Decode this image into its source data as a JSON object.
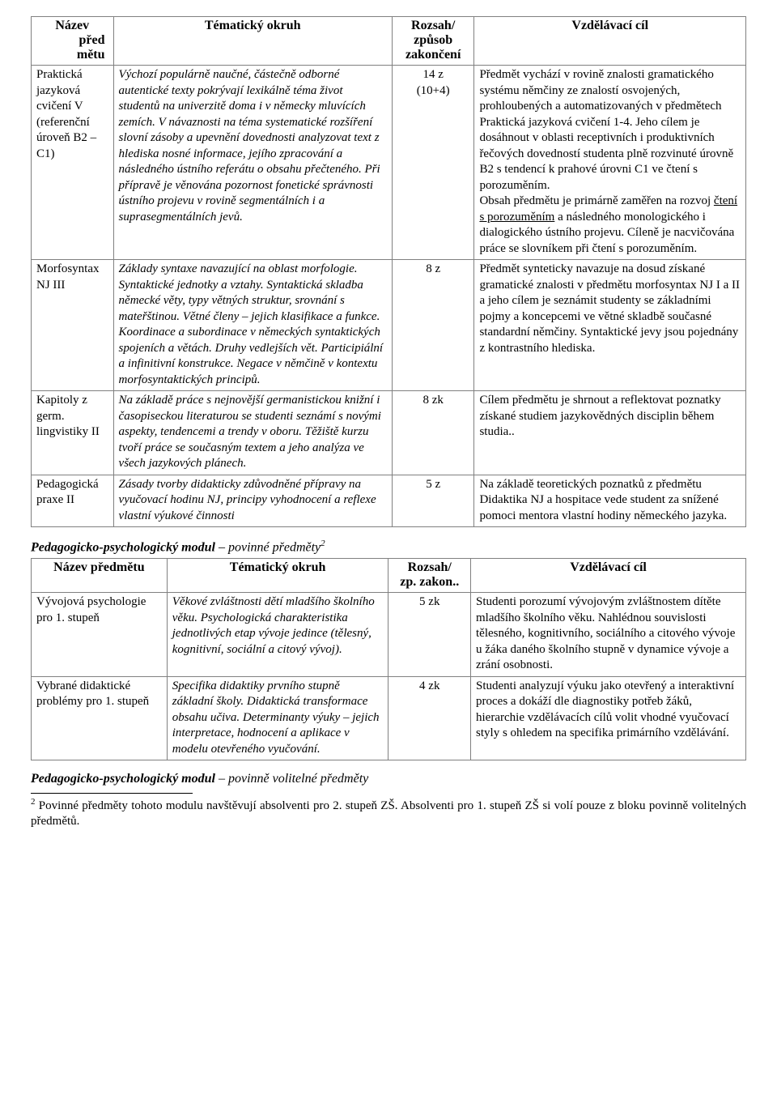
{
  "table1": {
    "headers": {
      "name_l1": "Název",
      "name_l2": "před",
      "name_l3": "mětu",
      "topic": "Tématický okruh",
      "extent_l1": "Rozsah/",
      "extent_l2": "způsob",
      "extent_l3": "zakončení",
      "goal": "Vzdělávací cíl"
    },
    "rows": [
      {
        "name": "Praktická jazyková cvičení V (referenční úroveň B2 – C1)",
        "topic": "Výchozí populárně naučné, částečně odborné autentické texty pokrývají lexikálně téma život studentů na univerzitě doma i v německy mluvících zemích. V návaznosti na téma systematické rozšíření slovní zásoby a upevnění dovednosti analyzovat text z hlediska nosné informace, jejího zpracování a následného ústního referátu o obsahu přečteného. Při přípravě je věnována pozornost fonetické správnosti ústního projevu v rovině segmentálních i a suprasegmentálních jevů.",
        "extent_l1": "14 z",
        "extent_l2": "(10+4)",
        "goal_p1a": "Předmět vychází v rovině znalosti gramatického systému němčiny ze znalostí osvojených, prohloubených a automatizovaných v předmětech Praktická jazyková cvičení 1-4. Jeho cílem je dosáhnout v oblasti receptivních i produktivních řečových dovedností studenta plně rozvinuté úrovně B2 s tendencí k prahové úrovni C1 ve čtení s porozuměním.",
        "goal_p2a": "Obsah předmětu je primárně zaměřen na rozvoj ",
        "goal_p2u": "čtení s porozuměním",
        "goal_p2b": " a následného monologického i dialogického ústního projevu. Cíleně je nacvičována práce se slovníkem při čtení s porozuměním."
      },
      {
        "name": "Morfosyntax NJ III",
        "topic": "Základy syntaxe navazující na oblast morfologie. Syntaktické jednotky a vztahy. Syntaktická skladba německé věty, typy větných struktur, srovnání s mateřštinou. Větné členy – jejich klasifikace a funkce. Koordinace a subordinace v německých syntaktických spojeních a větách. Druhy vedlejších vět. Participiální a infinitivní konstrukce. Negace v němčině v kontextu morfosyntaktických principů.",
        "extent_l1": "8 z",
        "goal": "Předmět synteticky navazuje na dosud získané gramatické znalosti v předmětu morfosyntax NJ I a II a jeho cílem je seznámit studenty se základními pojmy a koncepcemi ve větné skladbě současné standardní němčiny. Syntaktické jevy jsou pojednány z kontrastního hlediska."
      },
      {
        "name": "Kapitoly z germ. lingvistiky II",
        "topic": "Na základě práce s nejnovější germanistickou knižní i časopiseckou literaturou se studenti seznámí s novými aspekty, tendencemi a trendy v oboru. Těžiště kurzu tvoří práce se současným textem a jeho analýza ve všech jazykových plánech.",
        "extent_l1": "8 zk",
        "goal": "Cílem předmětu je shrnout a reflektovat poznatky získané studiem jazykovědných disciplin během studia.."
      },
      {
        "name": "Pedagogická praxe II",
        "topic": "Zásady tvorby didakticky zdůvodněné přípravy na vyučovací hodinu NJ, principy vyhodnocení a reflexe vlastní výukové činnosti",
        "extent_l1": "5 z",
        "goal": "Na základě teoretických poznatků z předmětu Didaktika NJ a hospitace vede student za snížené pomoci mentora vlastní hodiny německého jazyka."
      }
    ]
  },
  "section1": {
    "title": "Pedagogicko-psychologický modul",
    "suffix": " – povinné předměty",
    "sup": "2"
  },
  "table2": {
    "headers": {
      "name": "Název předmětu",
      "topic": "Tématický okruh",
      "extent_l1": "Rozsah/",
      "extent_l2": "zp. zakon..",
      "goal": "Vzdělávací cíl"
    },
    "rows": [
      {
        "name": "Vývojová psychologie pro 1. stupeň",
        "topic": "Věkové zvláštnosti dětí mladšího školního věku. Psychologická charakteristika jednotlivých etap vývoje jedince (tělesný, kognitivní, sociální a citový vývoj).",
        "extent": "5 zk",
        "goal": "Studenti porozumí vývojovým zvláštnostem dítěte mladšího školního věku. Nahlédnou souvislosti tělesného, kognitivního, sociálního a citového vývoje u žáka daného školního stupně v dynamice vývoje a zrání osobnosti."
      },
      {
        "name": "Vybrané didaktické problémy pro 1. stupeň",
        "topic": "Specifika didaktiky prvního stupně základní školy. Didaktická transformace obsahu učiva. Determinanty výuky – jejich interpretace, hodnocení a aplikace v modelu otevřeného vyučování.",
        "extent": "4 zk",
        "goal": "Studenti analyzují výuku jako otevřený a interaktivní proces a dokáží dle diagnostiky potřeb žáků, hierarchie vzdělávacích cílů volit vhodné vyučovací styly s ohledem na specifika primárního vzdělávání."
      }
    ]
  },
  "section2": {
    "title": "Pedagogicko-psychologický modul",
    "suffix": " – povinně volitelné předměty"
  },
  "footnote": {
    "num": "2",
    "text": " Povinné předměty tohoto modulu navštěvují absolventi pro 2. stupeň ZŠ. Absolventi pro 1. stupeň ZŠ si volí pouze z bloku povinně volitelných předmětů."
  }
}
